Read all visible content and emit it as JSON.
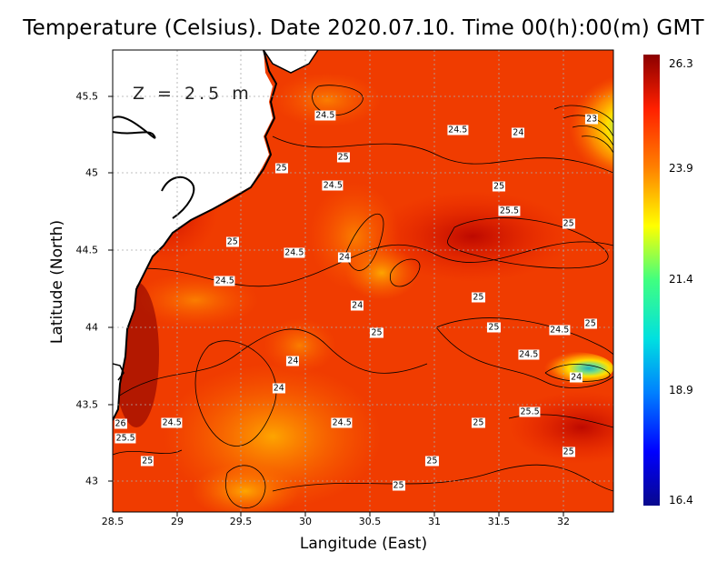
{
  "title": "Temperature (Celsius). Date 2020.07.10. Time 00(h):00(m)  GMT",
  "depth_label": "Z = 2.5 m",
  "axes": {
    "xlabel": "Langitude (East)",
    "ylabel": "Latitude (North)",
    "xticks": [
      "28.5",
      "29",
      "29.5",
      "30",
      "30.5",
      "31",
      "31.5",
      "32"
    ],
    "yticks": [
      "45.5",
      "45",
      "44.5",
      "44",
      "43.5",
      "43"
    ]
  },
  "colorbar": {
    "ticks": [
      "26.3",
      "23.9",
      "21.4",
      "18.9",
      "16.4"
    ],
    "min": 16.4,
    "max": 26.3
  },
  "contour_labels": [
    {
      "text": "24.5",
      "lon": 30.15,
      "lat": 45.37
    },
    {
      "text": "24.5",
      "lon": 31.18,
      "lat": 45.28
    },
    {
      "text": "24",
      "lon": 31.65,
      "lat": 45.26
    },
    {
      "text": "23",
      "lon": 32.22,
      "lat": 45.35
    },
    {
      "text": "25",
      "lon": 29.81,
      "lat": 45.03
    },
    {
      "text": "25",
      "lon": 30.29,
      "lat": 45.1
    },
    {
      "text": "24.5",
      "lon": 30.21,
      "lat": 44.92
    },
    {
      "text": "25",
      "lon": 31.5,
      "lat": 44.91
    },
    {
      "text": "25.5",
      "lon": 31.58,
      "lat": 44.75
    },
    {
      "text": "25",
      "lon": 32.04,
      "lat": 44.67
    },
    {
      "text": "25",
      "lon": 29.43,
      "lat": 44.55
    },
    {
      "text": "24.5",
      "lon": 29.91,
      "lat": 44.48
    },
    {
      "text": "24",
      "lon": 30.3,
      "lat": 44.45
    },
    {
      "text": "24.5",
      "lon": 29.37,
      "lat": 44.3
    },
    {
      "text": "25",
      "lon": 31.34,
      "lat": 44.19
    },
    {
      "text": "24",
      "lon": 30.4,
      "lat": 44.14
    },
    {
      "text": "25",
      "lon": 31.46,
      "lat": 44.0
    },
    {
      "text": "24.5",
      "lon": 31.97,
      "lat": 43.98
    },
    {
      "text": "25",
      "lon": 32.21,
      "lat": 44.02
    },
    {
      "text": "25",
      "lon": 30.55,
      "lat": 43.96
    },
    {
      "text": "24.5",
      "lon": 31.73,
      "lat": 43.82
    },
    {
      "text": "24",
      "lon": 29.9,
      "lat": 43.78
    },
    {
      "text": "24",
      "lon": 32.1,
      "lat": 43.67
    },
    {
      "text": "24",
      "lon": 29.79,
      "lat": 43.6
    },
    {
      "text": "25.5",
      "lon": 31.74,
      "lat": 43.45
    },
    {
      "text": "26",
      "lon": 28.56,
      "lat": 43.37
    },
    {
      "text": "24.5",
      "lon": 28.96,
      "lat": 43.38
    },
    {
      "text": "24.5",
      "lon": 30.28,
      "lat": 43.38
    },
    {
      "text": "25",
      "lon": 31.34,
      "lat": 43.38
    },
    {
      "text": "25.5",
      "lon": 28.6,
      "lat": 43.28
    },
    {
      "text": "25",
      "lon": 32.04,
      "lat": 43.19
    },
    {
      "text": "25",
      "lon": 28.77,
      "lat": 43.13
    },
    {
      "text": "25",
      "lon": 30.98,
      "lat": 43.13
    },
    {
      "text": "25",
      "lon": 30.72,
      "lat": 42.97
    }
  ]
}
